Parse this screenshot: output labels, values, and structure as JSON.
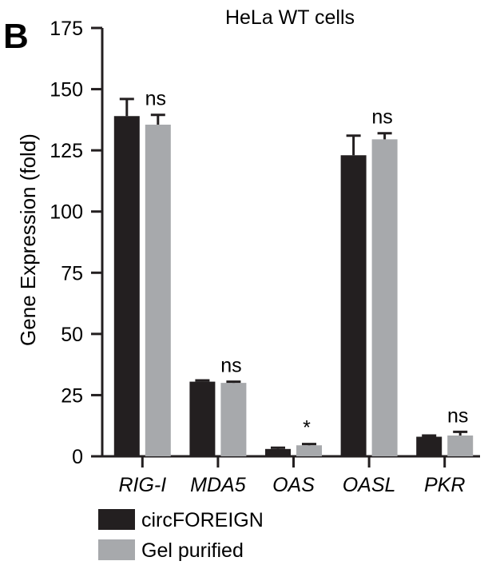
{
  "chart_data": {
    "type": "bar",
    "panel_label": "B",
    "title": "HeLa WT cells",
    "xlabel": "",
    "ylabel": "Gene Expression (fold)",
    "ylim": [
      0,
      175
    ],
    "yticks": [
      0,
      25,
      50,
      75,
      100,
      125,
      150,
      175
    ],
    "categories": [
      "RIG-I",
      "MDA5",
      "OAS",
      "OASL",
      "PKR"
    ],
    "series": [
      {
        "name": "circFOREIGN",
        "color": "#231f20",
        "values": [
          139,
          30.5,
          3,
          123,
          8
        ],
        "errors": [
          7,
          0.5,
          0.5,
          8,
          0.5
        ]
      },
      {
        "name": "Gel purified",
        "color": "#a7a9ac",
        "values": [
          135.5,
          30,
          4.5,
          129.5,
          8.5
        ],
        "errors": [
          4,
          0.5,
          0.5,
          2.5,
          1.5
        ]
      }
    ],
    "significance": [
      "ns",
      "ns",
      "*",
      "ns",
      "ns"
    ],
    "legend_position": "bottom-left",
    "grid": false
  }
}
